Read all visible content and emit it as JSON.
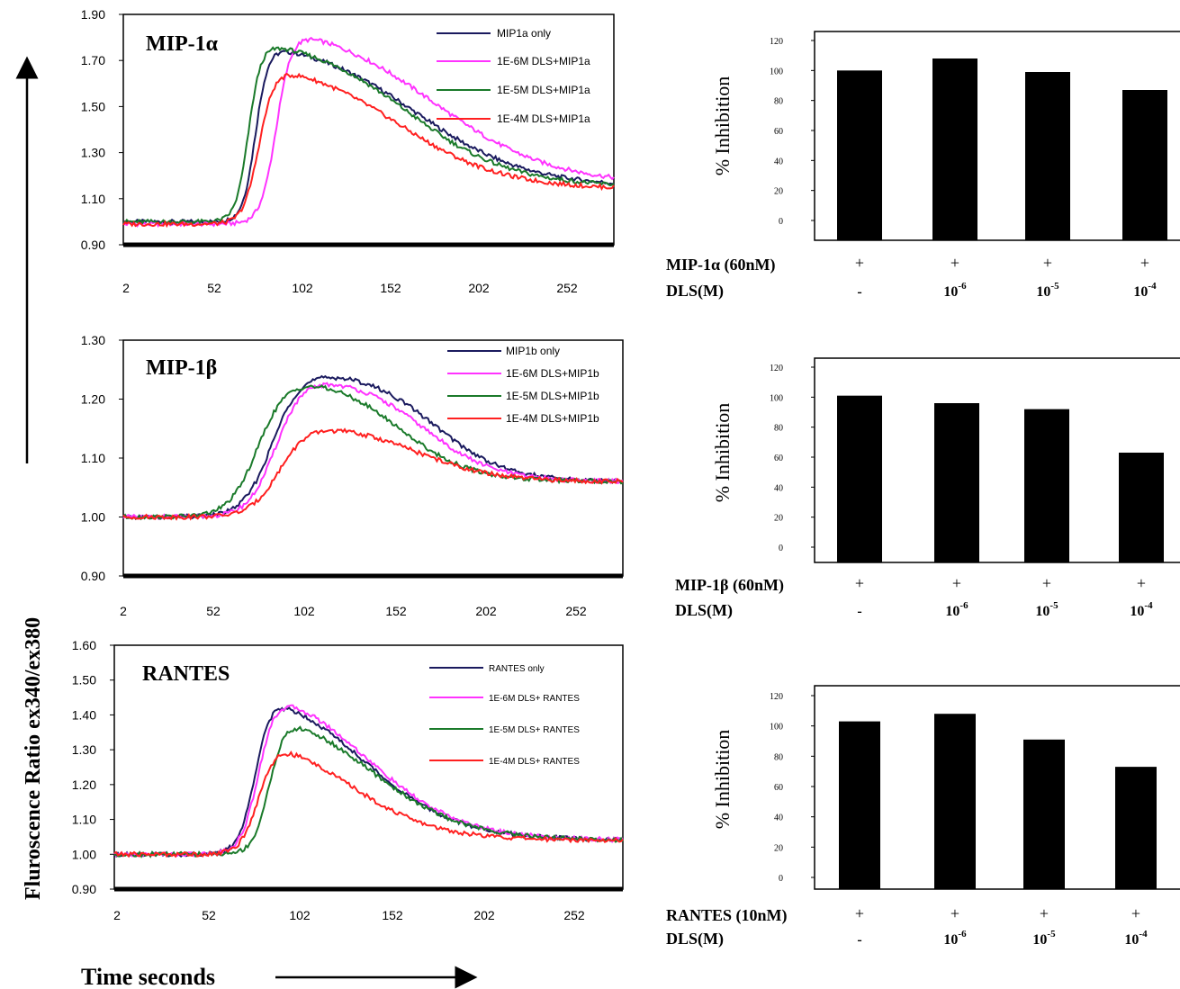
{
  "figure": {
    "y_axis_label": "Fluroscence  Ratio ex340/ex380",
    "x_axis_label": "Time seconds"
  },
  "chart_data": [
    {
      "type": "line",
      "title": "MIP-1α",
      "ylim": [
        0.9,
        1.9
      ],
      "yticks": [
        "1.90",
        "1.70",
        "1.50",
        "1.30",
        "1.10",
        "0.90"
      ],
      "xlim": [
        2,
        284
      ],
      "xticks": [
        "2",
        "52",
        "102",
        "152",
        "202",
        "252"
      ],
      "grid": false,
      "legend_position": "top-right",
      "series": [
        {
          "name": "MIP1a only",
          "color": "#1a1a5e",
          "onset": 70,
          "rise": 18,
          "peak": 1.8,
          "decay_mid": 170,
          "decay_w": 32,
          "baseline": 1.0,
          "end": 1.15
        },
        {
          "name": "1E-6M DLS+MIP1a",
          "color": "#ff33ff",
          "onset": 82,
          "rise": 22,
          "peak": 1.88,
          "decay_mid": 180,
          "decay_w": 34,
          "baseline": 0.99,
          "end": 1.16
        },
        {
          "name": "1E-5M DLS+MIP1a",
          "color": "#1a7a2a",
          "onset": 66,
          "rise": 18,
          "peak": 1.81,
          "decay_mid": 165,
          "decay_w": 30,
          "baseline": 1.0,
          "end": 1.15
        },
        {
          "name": "1E-4M DLS+MIP1a",
          "color": "#ff2020",
          "onset": 72,
          "rise": 22,
          "peak": 1.71,
          "decay_mid": 160,
          "decay_w": 30,
          "baseline": 0.99,
          "end": 1.14
        }
      ]
    },
    {
      "type": "line",
      "title": "MIP-1β",
      "ylim": [
        0.9,
        1.3
      ],
      "yticks": [
        "1.30",
        "1.20",
        "1.10",
        "1.00",
        "0.90"
      ],
      "xlim": [
        2,
        284
      ],
      "xticks": [
        "2",
        "52",
        "102",
        "152",
        "202",
        "252"
      ],
      "grid": false,
      "legend_position": "top-right",
      "series": [
        {
          "name": "MIP1b only",
          "color": "#1a1a5e",
          "onset": 78,
          "rise": 40,
          "peak": 1.25,
          "decay_mid": 178,
          "decay_w": 20,
          "baseline": 1.0,
          "end": 1.06
        },
        {
          "name": "1E-6M DLS+MIP1b",
          "color": "#ff33ff",
          "onset": 80,
          "rise": 38,
          "peak": 1.24,
          "decay_mid": 172,
          "decay_w": 20,
          "baseline": 1.0,
          "end": 1.06
        },
        {
          "name": "1E-5M DLS+MIP1b",
          "color": "#1a7a2a",
          "onset": 70,
          "rise": 40,
          "peak": 1.24,
          "decay_mid": 158,
          "decay_w": 20,
          "baseline": 1.0,
          "end": 1.06
        },
        {
          "name": "1E-4M DLS+MIP1b",
          "color": "#ff2020",
          "onset": 82,
          "rise": 40,
          "peak": 1.16,
          "decay_mid": 168,
          "decay_w": 22,
          "baseline": 1.0,
          "end": 1.06
        }
      ]
    },
    {
      "type": "line",
      "title": "RANTES",
      "ylim": [
        0.9,
        1.6
      ],
      "yticks": [
        "1.60",
        "1.50",
        "1.40",
        "1.30",
        "1.20",
        "1.10",
        "1.00",
        "0.90"
      ],
      "xlim": [
        2,
        284
      ],
      "xticks": [
        "2",
        "52",
        "102",
        "152",
        "202",
        "252"
      ],
      "grid": false,
      "legend_position": "top-right",
      "series": [
        {
          "name": "RANTES only",
          "color": "#1a1a5e",
          "onset": 72,
          "rise": 22,
          "peak": 1.5,
          "decay_mid": 140,
          "decay_w": 26,
          "baseline": 1.0,
          "end": 1.04
        },
        {
          "name": "1E-6M DLS+ RANTES",
          "color": "#ff33ff",
          "onset": 74,
          "rise": 24,
          "peak": 1.51,
          "decay_mid": 142,
          "decay_w": 26,
          "baseline": 1.0,
          "end": 1.04
        },
        {
          "name": "1E-5M DLS+ RANTES",
          "color": "#1a7a2a",
          "onset": 80,
          "rise": 22,
          "peak": 1.44,
          "decay_mid": 144,
          "decay_w": 26,
          "baseline": 1.0,
          "end": 1.04
        },
        {
          "name": "1E-4M DLS+ RANTES",
          "color": "#ff2020",
          "onset": 74,
          "rise": 24,
          "peak": 1.36,
          "decay_mid": 132,
          "decay_w": 24,
          "baseline": 1.0,
          "end": 1.04
        }
      ]
    },
    {
      "type": "bar",
      "ylabel": "% Inhibition",
      "ylim": [
        0,
        120
      ],
      "yticks": [
        "120",
        "100",
        "80",
        "60",
        "40",
        "20",
        "0"
      ],
      "values": [
        100,
        108,
        99,
        87
      ],
      "bar_color": "#000000",
      "row_labels": [
        "MIP-1α (60nM)",
        "DLS(M)"
      ],
      "treatment_marks": [
        "+",
        "+",
        "+",
        "+"
      ],
      "dose_labels": [
        {
          "base": "-",
          "exp": ""
        },
        {
          "base": "10",
          "exp": "-6"
        },
        {
          "base": "10",
          "exp": "-5"
        },
        {
          "base": "10",
          "exp": "-4"
        }
      ]
    },
    {
      "type": "bar",
      "ylabel": "% Inhibition",
      "ylim": [
        0,
        120
      ],
      "yticks": [
        "120",
        "100",
        "80",
        "60",
        "40",
        "20",
        "0"
      ],
      "values": [
        101,
        96,
        92,
        63
      ],
      "bar_color": "#000000",
      "row_labels": [
        "MIP-1β (60nM)",
        "DLS(M)"
      ],
      "treatment_marks": [
        "+",
        "+",
        "+",
        "+"
      ],
      "dose_labels": [
        {
          "base": "-",
          "exp": ""
        },
        {
          "base": "10",
          "exp": "-6"
        },
        {
          "base": "10",
          "exp": "-5"
        },
        {
          "base": "10",
          "exp": "-4"
        }
      ]
    },
    {
      "type": "bar",
      "ylabel": "% Inhibition",
      "ylim": [
        0,
        120
      ],
      "yticks": [
        "120",
        "100",
        "80",
        "60",
        "40",
        "20",
        "0"
      ],
      "values": [
        103,
        108,
        91,
        73
      ],
      "bar_color": "#000000",
      "row_labels": [
        "RANTES (10nM)",
        "DLS(M)"
      ],
      "treatment_marks": [
        "+",
        "+",
        "+",
        "+"
      ],
      "dose_labels": [
        {
          "base": "-",
          "exp": ""
        },
        {
          "base": "10",
          "exp": "-6"
        },
        {
          "base": "10",
          "exp": "-5"
        },
        {
          "base": "10",
          "exp": "-4"
        }
      ]
    }
  ]
}
